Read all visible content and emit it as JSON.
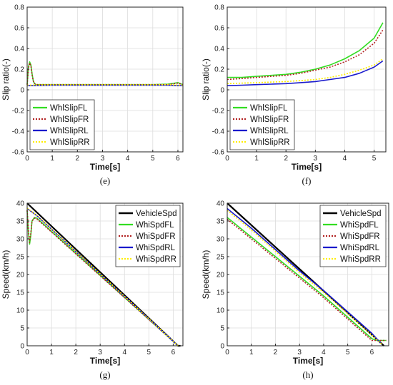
{
  "figure": {
    "panels": [
      "e",
      "f",
      "g",
      "h"
    ]
  },
  "chart_data": [
    {
      "id": "e",
      "caption": "(e)",
      "type": "line",
      "xlabel": "Time[s]",
      "ylabel": "Slip ratio(-)",
      "xlim": [
        0,
        6.2
      ],
      "ylim": [
        -0.6,
        0.8
      ],
      "xticks": [
        0,
        1,
        2,
        3,
        4,
        5,
        6
      ],
      "yticks": [
        -0.6,
        -0.4,
        -0.2,
        0,
        0.2,
        0.4,
        0.6,
        0.8
      ],
      "grid": true,
      "legend_position": "lower-left",
      "colors": {
        "WhlSlipFL": "#33dd22",
        "WhlSlipFR": "#b22222",
        "WhlSlipRL": "#1a1acc",
        "WhlSlipRR": "#ffee00"
      },
      "series": [
        {
          "name": "WhlSlipFL",
          "style": "solid",
          "x": [
            0,
            0.05,
            0.1,
            0.15,
            0.2,
            0.25,
            0.3,
            0.35,
            0.4,
            0.5,
            0.7,
            1,
            2,
            3,
            4,
            5,
            5.6,
            6,
            6.2
          ],
          "y": [
            0.05,
            0.22,
            0.27,
            0.24,
            0.15,
            0.08,
            0.06,
            0.05,
            0.05,
            0.05,
            0.05,
            0.05,
            0.05,
            0.05,
            0.05,
            0.05,
            0.055,
            0.07,
            0.05
          ]
        },
        {
          "name": "WhlSlipFR",
          "style": "dotted",
          "x": [
            0,
            0.05,
            0.1,
            0.15,
            0.2,
            0.25,
            0.3,
            0.35,
            0.4,
            0.5,
            0.7,
            1,
            2,
            3,
            4,
            5,
            5.6,
            6,
            6.2
          ],
          "y": [
            0.05,
            0.21,
            0.26,
            0.23,
            0.14,
            0.08,
            0.06,
            0.05,
            0.05,
            0.05,
            0.05,
            0.05,
            0.05,
            0.05,
            0.05,
            0.05,
            0.05,
            0.065,
            0.05
          ]
        },
        {
          "name": "WhlSlipRL",
          "style": "solid",
          "x": [
            0,
            1,
            2,
            3,
            4,
            5,
            5.6,
            6,
            6.2
          ],
          "y": [
            0.04,
            0.045,
            0.045,
            0.045,
            0.045,
            0.045,
            0.045,
            0.04,
            0.04
          ]
        },
        {
          "name": "WhlSlipRR",
          "style": "dotted",
          "x": [
            0,
            1,
            2,
            3,
            4,
            5,
            5.6,
            6,
            6.2
          ],
          "y": [
            0.045,
            0.048,
            0.048,
            0.048,
            0.048,
            0.048,
            0.05,
            0.045,
            0.045
          ]
        }
      ]
    },
    {
      "id": "f",
      "caption": "(f)",
      "type": "line",
      "xlabel": "Time[s]",
      "ylabel": "Slip ratio(-)",
      "xlim": [
        0,
        5.4
      ],
      "ylim": [
        -0.6,
        0.8
      ],
      "xticks": [
        0,
        1,
        2,
        3,
        4,
        5
      ],
      "yticks": [
        -0.6,
        -0.4,
        -0.2,
        0,
        0.2,
        0.4,
        0.6,
        0.8
      ],
      "grid": true,
      "legend_position": "lower-left",
      "colors": {
        "WhlSlipFL": "#33dd22",
        "WhlSlipFR": "#b22222",
        "WhlSlipRL": "#1a1acc",
        "WhlSlipRR": "#ffee00"
      },
      "series": [
        {
          "name": "WhlSlipFL",
          "style": "solid",
          "x": [
            0,
            0.5,
            1,
            1.5,
            2,
            2.5,
            3,
            3.5,
            4,
            4.5,
            5,
            5.3
          ],
          "y": [
            0.12,
            0.12,
            0.13,
            0.14,
            0.15,
            0.17,
            0.2,
            0.24,
            0.3,
            0.38,
            0.5,
            0.65
          ]
        },
        {
          "name": "WhlSlipFR",
          "style": "dotted",
          "x": [
            0,
            0.5,
            1,
            1.5,
            2,
            2.5,
            3,
            3.5,
            4,
            4.5,
            5,
            5.3
          ],
          "y": [
            0.1,
            0.11,
            0.12,
            0.13,
            0.14,
            0.16,
            0.19,
            0.22,
            0.27,
            0.34,
            0.45,
            0.58
          ]
        },
        {
          "name": "WhlSlipRL",
          "style": "solid",
          "x": [
            0,
            0.5,
            1,
            1.5,
            2,
            2.5,
            3,
            3.5,
            4,
            4.5,
            5,
            5.3
          ],
          "y": [
            0.04,
            0.045,
            0.05,
            0.055,
            0.06,
            0.07,
            0.08,
            0.1,
            0.12,
            0.16,
            0.22,
            0.28
          ]
        },
        {
          "name": "WhlSlipRR",
          "style": "dotted",
          "x": [
            0,
            0.5,
            1,
            1.5,
            2,
            2.5,
            3,
            3.5,
            4,
            4.5,
            5,
            5.3
          ],
          "y": [
            0.06,
            0.065,
            0.07,
            0.075,
            0.08,
            0.09,
            0.1,
            0.12,
            0.15,
            0.19,
            0.24,
            0.3
          ]
        }
      ]
    },
    {
      "id": "g",
      "caption": "(g)",
      "type": "line",
      "xlabel": "Time[s]",
      "ylabel": "Speed(km/h)",
      "xlim": [
        0,
        6.4
      ],
      "ylim": [
        0,
        40
      ],
      "xticks": [
        0,
        1,
        2,
        3,
        4,
        5,
        6
      ],
      "yticks": [
        0,
        5,
        10,
        15,
        20,
        25,
        30,
        35,
        40
      ],
      "grid": true,
      "legend_position": "top-right",
      "colors": {
        "VehicleSpd": "#000000",
        "WhiSpdFL": "#33dd22",
        "WhiSpdFR": "#b22222",
        "WhiSpdRL": "#1a1acc",
        "WhiSpdRR": "#ffee00"
      },
      "series": [
        {
          "name": "VehicleSpd",
          "style": "solid",
          "x": [
            0,
            6.2,
            6.3
          ],
          "y": [
            40,
            0,
            0
          ]
        },
        {
          "name": "WhiSpdFL",
          "style": "solid",
          "x": [
            0,
            0.05,
            0.1,
            0.15,
            0.2,
            0.3,
            0.4,
            6.2
          ],
          "y": [
            38,
            32,
            28.5,
            31,
            35,
            36,
            35.8,
            0
          ]
        },
        {
          "name": "WhiSpdFR",
          "style": "dotted",
          "x": [
            0,
            0.05,
            0.1,
            0.15,
            0.2,
            0.3,
            0.4,
            6.2
          ],
          "y": [
            38,
            32.5,
            29,
            31.5,
            35,
            35.8,
            35.6,
            0
          ]
        },
        {
          "name": "WhiSpdRL",
          "style": "solid",
          "x": [
            0,
            0.4,
            6.2
          ],
          "y": [
            38.5,
            36.5,
            0
          ]
        },
        {
          "name": "WhiSpdRR",
          "style": "dotted",
          "x": [
            0,
            0.4,
            6.2
          ],
          "y": [
            38.6,
            36.6,
            0
          ]
        }
      ]
    },
    {
      "id": "h",
      "caption": "(h)",
      "type": "line",
      "xlabel": "Time[s]",
      "ylabel": "Speed(km/h)",
      "xlim": [
        0,
        6.7
      ],
      "ylim": [
        0,
        40
      ],
      "xticks": [
        0,
        1,
        2,
        3,
        4,
        5,
        6
      ],
      "yticks": [
        0,
        5,
        10,
        15,
        20,
        25,
        30,
        35,
        40
      ],
      "grid": true,
      "legend_position": "top-right",
      "colors": {
        "VehicleSpd": "#000000",
        "WhiSpdFL": "#33dd22",
        "WhiSpdFR": "#b22222",
        "WhiSpdRL": "#1a1acc",
        "WhiSpdRR": "#ffee00"
      },
      "series": [
        {
          "name": "VehicleSpd",
          "style": "solid",
          "x": [
            0,
            6.5
          ],
          "y": [
            40,
            0
          ]
        },
        {
          "name": "WhiSpdFL",
          "style": "solid",
          "x": [
            0,
            1,
            2,
            3,
            4,
            5,
            6,
            6.2,
            6.6
          ],
          "y": [
            36,
            30.5,
            25,
            19.5,
            14,
            8,
            2,
            1.5,
            1.5
          ]
        },
        {
          "name": "WhiSpdFR",
          "style": "dotted",
          "x": [
            0,
            1,
            2,
            3,
            4,
            5,
            6,
            6.2,
            6.6
          ],
          "y": [
            35.5,
            30,
            24.5,
            19,
            13.5,
            7.5,
            1.5,
            1.5,
            1.5
          ]
        },
        {
          "name": "WhiSpdRL",
          "style": "solid",
          "x": [
            0,
            1,
            2,
            3,
            4,
            5,
            6,
            6.4
          ],
          "y": [
            38.5,
            33,
            27,
            21,
            15.5,
            9.5,
            3.5,
            0.5
          ]
        },
        {
          "name": "WhiSpdRR",
          "style": "dotted",
          "x": [
            0,
            1,
            2,
            3,
            4,
            5,
            6,
            6.4
          ],
          "y": [
            38,
            32.5,
            26.5,
            20.5,
            15,
            9,
            3,
            0.5
          ]
        }
      ]
    }
  ]
}
